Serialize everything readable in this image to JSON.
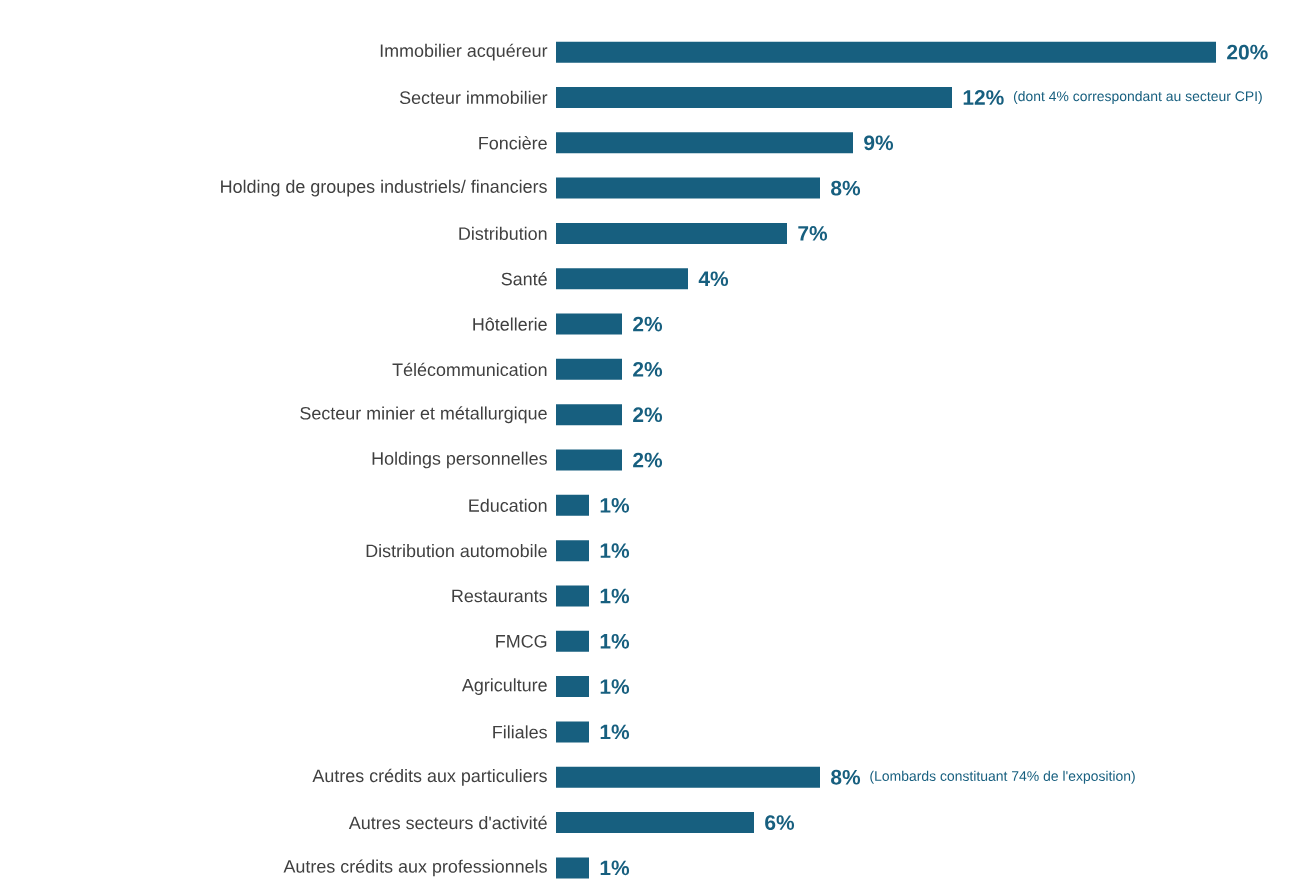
{
  "chart_data": {
    "type": "bar",
    "orientation": "horizontal",
    "tick_labels": "y",
    "color": "#175f7f",
    "categories": [
      "Immobilier acquéreur",
      "Secteur immobilier",
      "Foncière",
      "Holding de groupes industriels/ financiers",
      "Distribution",
      "Santé",
      "Hôtellerie",
      "Télécommunication",
      "Secteur minier et métallurgique",
      "Holdings personnelles",
      "Education",
      "Distribution automobile",
      "Restaurants",
      "FMCG",
      "Agriculture",
      "Filiales",
      "Autres crédits aux particuliers",
      "Autres secteurs d'activité",
      "Autres crédits aux professionnels"
    ],
    "values": [
      20,
      12,
      9,
      8,
      7,
      4,
      2,
      2,
      2,
      2,
      1,
      1,
      1,
      1,
      1,
      1,
      8,
      6,
      1
    ],
    "value_labels": [
      "20%",
      "12%",
      "9%",
      "8%",
      "7%",
      "4%",
      "2%",
      "2%",
      "2%",
      "2%",
      "1%",
      "1%",
      "1%",
      "1%",
      "1%",
      "1%",
      "8%",
      "6%",
      "1%"
    ],
    "annotations": [
      "(dont 4% correspondant au secteur CPI)",
      "(Lombards constituant 74% de l'exposition)"
    ]
  }
}
